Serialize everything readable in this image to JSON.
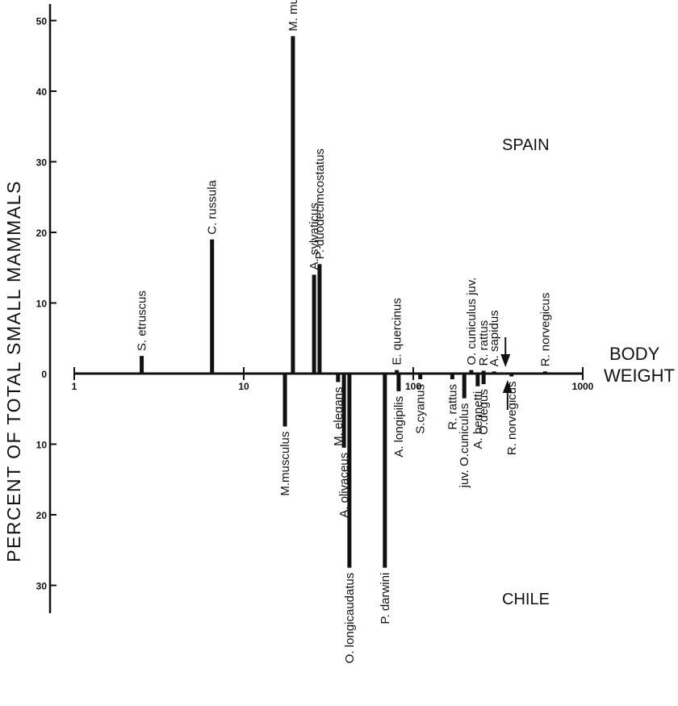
{
  "chart_data": {
    "type": "bar",
    "title": "",
    "xlabel": "BODY WEIGHT",
    "ylabel": "PERCENT OF TOTAL SMALL MAMMALS",
    "x_scale": "log",
    "xlim": [
      1,
      1000
    ],
    "x_ticks": [
      "1",
      "10",
      "100",
      "1000"
    ],
    "y_ticks_top": [
      "0",
      "10",
      "20",
      "30",
      "40",
      "50"
    ],
    "y_ticks_bottom": [
      "10",
      "20",
      "30"
    ],
    "ylim_top": [
      0,
      50
    ],
    "ylim_bottom": [
      0,
      30
    ],
    "top_panel_label": "SPAIN",
    "bottom_panel_label": "CHILE",
    "series": [
      {
        "name": "SPAIN",
        "points": [
          {
            "label": "S. etruscus",
            "x": 2.5,
            "y": 2.5
          },
          {
            "label": "C. russula",
            "x": 6.5,
            "y": 19
          },
          {
            "label": "M. musculus",
            "x": 19.5,
            "y": 47.8
          },
          {
            "label": "A. sylvaticus",
            "x": 26,
            "y": 14
          },
          {
            "label": "P. duodecimcostatus",
            "x": 28,
            "y": 15.5
          },
          {
            "label": "E. quercinus",
            "x": 80,
            "y": 0.5
          },
          {
            "label": "O. cuniculus  juv.",
            "x": 220,
            "y": 0.5
          },
          {
            "label": "R. rattus",
            "x": 260,
            "y": 0.4
          },
          {
            "label": "A. sapidus",
            "x": 300,
            "y": 0.3
          },
          {
            "label": "R. norvegicus",
            "x": 600,
            "y": 0.3
          }
        ]
      },
      {
        "name": "CHILE",
        "points": [
          {
            "label": "M.musculus",
            "x": 17.5,
            "y": 7.5
          },
          {
            "label": "M. elegans",
            "x": 36,
            "y": 1.2
          },
          {
            "label": "A. olivaceus",
            "x": 39,
            "y": 10.5
          },
          {
            "label": "O. longicaudatus",
            "x": 42,
            "y": 27.5
          },
          {
            "label": "P. darwini",
            "x": 68,
            "y": 27.5
          },
          {
            "label": "A. longipilis",
            "x": 82,
            "y": 2.5
          },
          {
            "label": "S.cyanus",
            "x": 110,
            "y": 0.8
          },
          {
            "label": "R. rattus",
            "x": 170,
            "y": 0.8
          },
          {
            "label": "juv.  O.cuniculus",
            "x": 200,
            "y": 3.5
          },
          {
            "label": "A. bennetti",
            "x": 240,
            "y": 1.8
          },
          {
            "label": "O.degus",
            "x": 260,
            "y": 1.5
          },
          {
            "label": "R. norvegicus",
            "x": 380,
            "y": 0.4
          }
        ]
      }
    ],
    "annotations": [
      {
        "type": "arrow",
        "direction": "down",
        "x": 350,
        "panel": "SPAIN"
      },
      {
        "type": "arrow",
        "direction": "up",
        "x": 360,
        "panel": "CHILE"
      }
    ],
    "grid": false,
    "legend": "none",
    "colors": {
      "ink": "#111111",
      "background": "#ffffff"
    }
  }
}
